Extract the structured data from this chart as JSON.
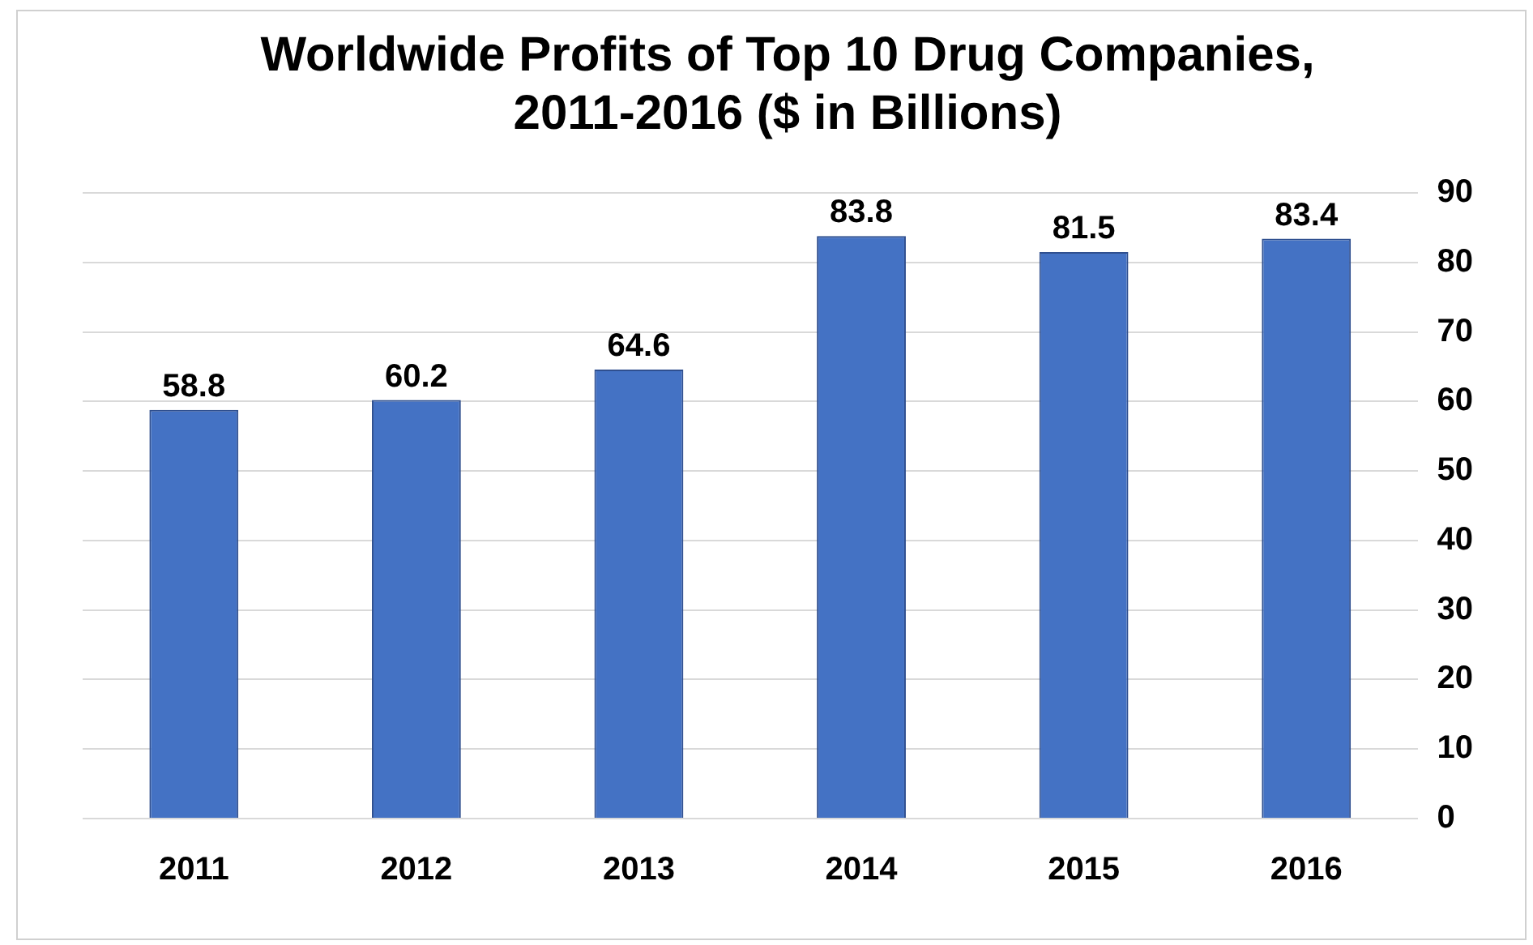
{
  "chart_data": {
    "type": "bar",
    "title": [
      "Worldwide Profits of Top 10 Drug Companies,",
      "2011-2016 ($ in Billions)"
    ],
    "categories": [
      "2011",
      "2012",
      "2013",
      "2014",
      "2015",
      "2016"
    ],
    "values": [
      58.8,
      60.2,
      64.6,
      83.8,
      81.5,
      83.4
    ],
    "color": "#4472c4",
    "ylim": [
      0,
      90
    ],
    "yticks": [
      0,
      10,
      20,
      30,
      40,
      50,
      60,
      70,
      80,
      90
    ],
    "grid": "y",
    "data_labels": true,
    "legend": false
  }
}
